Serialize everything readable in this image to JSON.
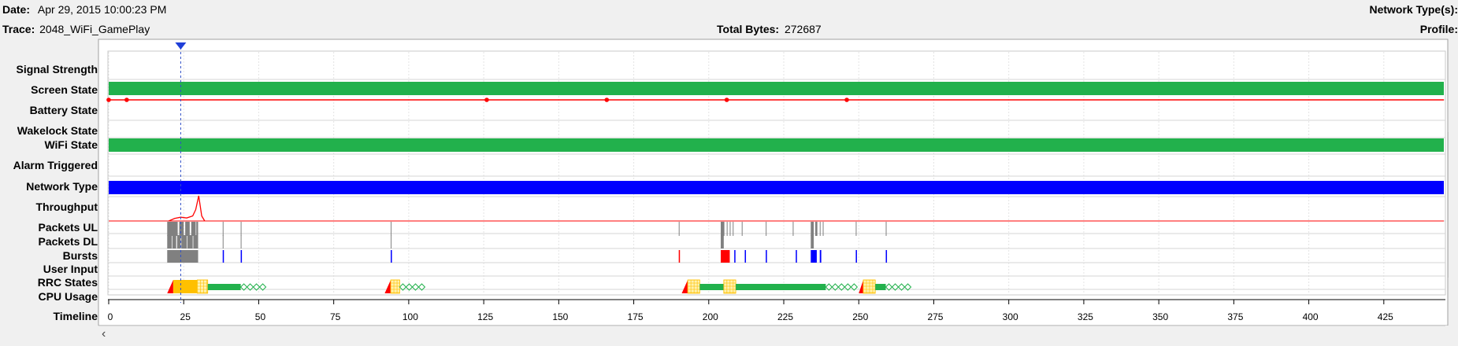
{
  "header": {
    "date_label": "Date:",
    "date_value": "Apr 29, 2015 10:00:23 PM",
    "trace_label": "Trace:",
    "trace_value": "2048_WiFi_GamePlay",
    "total_bytes_label": "Total Bytes:",
    "total_bytes_value": "272687",
    "network_types_label": "Network Type(s):",
    "profile_label": "Profile:"
  },
  "rows": [
    {
      "label": "Signal Strength"
    },
    {
      "label": "Screen State"
    },
    {
      "label": "Battery State"
    },
    {
      "label": "Wakelock State"
    },
    {
      "label": "WiFi State"
    },
    {
      "label": "Alarm Triggered"
    },
    {
      "label": "Network Type"
    },
    {
      "label": "Throughput"
    },
    {
      "label": "Packets UL"
    },
    {
      "label": "Packets DL"
    },
    {
      "label": "Bursts"
    },
    {
      "label": "User Input"
    },
    {
      "label": "RRC States"
    },
    {
      "label": "CPU Usage"
    },
    {
      "label": "Timeline"
    }
  ],
  "timeline": {
    "min": 0,
    "max": 445,
    "ticks": [
      0,
      25,
      50,
      75,
      100,
      125,
      150,
      175,
      200,
      225,
      250,
      275,
      300,
      325,
      350,
      375,
      400,
      425
    ],
    "cursor_time": 24
  },
  "colors": {
    "screen_on": "#22b14c",
    "wifi_on": "#22b14c",
    "network": "#0000ff",
    "battery": "#ff0000",
    "packets": "#808080",
    "burst_blue": "#0000ff",
    "burst_red": "#ff0000",
    "rrc_promo": "#ff0000",
    "rrc_dch": "#ffc000",
    "rrc_fach": "#22b14c",
    "throughput": "#ff0000"
  },
  "battery_points": [
    0,
    6,
    126,
    166,
    206,
    246
  ],
  "throughput_points": [
    [
      20,
      0
    ],
    [
      22,
      0.1
    ],
    [
      24,
      0.15
    ],
    [
      26,
      0.12
    ],
    [
      28,
      0.2
    ],
    [
      29,
      0.45
    ],
    [
      30,
      1.0
    ],
    [
      31,
      0.2
    ],
    [
      32,
      0
    ]
  ],
  "packets_ul": [
    [
      19.5,
      21
    ],
    [
      21,
      22.2
    ],
    [
      22,
      23
    ],
    [
      23.5,
      25
    ],
    [
      25.5,
      27
    ],
    [
      27.5,
      29
    ],
    [
      29.2,
      29.8
    ],
    [
      38,
      38.2
    ],
    [
      44,
      44.2
    ],
    [
      94,
      94.2
    ],
    [
      190,
      190.2
    ],
    [
      204,
      205.2
    ],
    [
      206,
      206.2
    ],
    [
      207,
      207.2
    ],
    [
      208,
      208.2
    ],
    [
      211,
      211.2
    ],
    [
      219,
      219.2
    ],
    [
      228,
      228.2
    ],
    [
      234,
      235
    ],
    [
      235.5,
      236.2
    ],
    [
      237,
      237.2
    ],
    [
      238,
      238.2
    ],
    [
      249,
      249.2
    ],
    [
      259,
      259.2
    ]
  ],
  "packets_dl": [
    [
      19.5,
      21
    ],
    [
      21.2,
      22.5
    ],
    [
      22.8,
      24
    ],
    [
      24.2,
      26
    ],
    [
      26.2,
      28
    ],
    [
      28.2,
      29.8
    ],
    [
      38,
      38.2
    ],
    [
      44,
      44.2
    ],
    [
      94,
      94.2
    ],
    [
      204,
      205
    ],
    [
      234,
      235
    ]
  ],
  "bursts": [
    {
      "start": 19.5,
      "end": 29.8,
      "color": "#808080"
    },
    {
      "start": 38,
      "end": 38.4,
      "color": "#0000ff"
    },
    {
      "start": 44,
      "end": 44.4,
      "color": "#0000ff"
    },
    {
      "start": 94,
      "end": 94.4,
      "color": "#0000ff"
    },
    {
      "start": 190,
      "end": 190.4,
      "color": "#ff0000"
    },
    {
      "start": 204,
      "end": 207,
      "color": "#ff0000"
    },
    {
      "start": 208.5,
      "end": 208.9,
      "color": "#0000ff"
    },
    {
      "start": 212,
      "end": 212.4,
      "color": "#0000ff"
    },
    {
      "start": 219,
      "end": 219.4,
      "color": "#0000ff"
    },
    {
      "start": 229,
      "end": 229.4,
      "color": "#0000ff"
    },
    {
      "start": 234,
      "end": 236,
      "color": "#0000ff"
    },
    {
      "start": 237,
      "end": 237.5,
      "color": "#0000ff"
    },
    {
      "start": 249,
      "end": 249.4,
      "color": "#0000ff"
    },
    {
      "start": 259,
      "end": 259.4,
      "color": "#0000ff"
    }
  ],
  "rrc_segments": [
    {
      "start": 19.5,
      "end": 21.5,
      "kind": "promo"
    },
    {
      "start": 21.5,
      "end": 29.5,
      "kind": "dch"
    },
    {
      "start": 29.5,
      "end": 33,
      "kind": "dch-tail"
    },
    {
      "start": 33,
      "end": 44,
      "kind": "fach"
    },
    {
      "start": 44,
      "end": 54,
      "kind": "fach-tail"
    },
    {
      "start": 92,
      "end": 94,
      "kind": "promo"
    },
    {
      "start": 94,
      "end": 97,
      "kind": "dch-tail"
    },
    {
      "start": 97,
      "end": 107,
      "kind": "fach-tail"
    },
    {
      "start": 191,
      "end": 193,
      "kind": "promo"
    },
    {
      "start": 193,
      "end": 197,
      "kind": "dch-tail"
    },
    {
      "start": 197,
      "end": 205,
      "kind": "fach"
    },
    {
      "start": 205,
      "end": 209,
      "kind": "dch-tail"
    },
    {
      "start": 209,
      "end": 239,
      "kind": "fach"
    },
    {
      "start": 239,
      "end": 250,
      "kind": "fach-tail"
    },
    {
      "start": 250,
      "end": 251.5,
      "kind": "promo"
    },
    {
      "start": 251.5,
      "end": 255.5,
      "kind": "dch-tail"
    },
    {
      "start": 255.5,
      "end": 259,
      "kind": "fach"
    },
    {
      "start": 259,
      "end": 269,
      "kind": "fach-tail"
    }
  ]
}
